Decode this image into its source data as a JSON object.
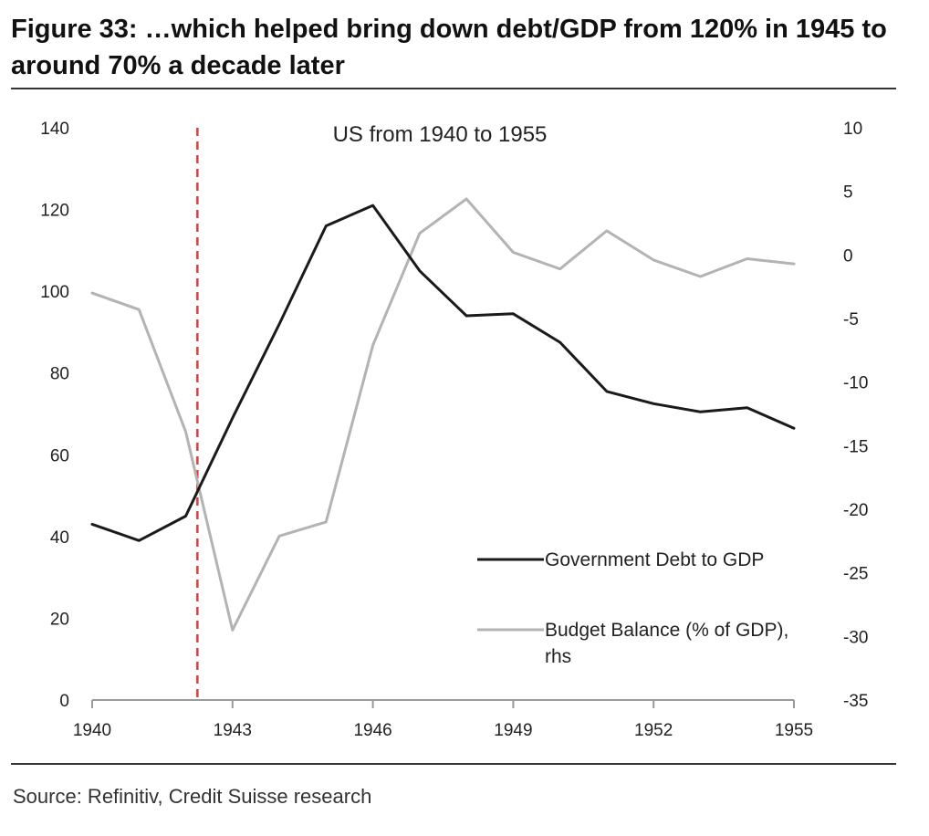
{
  "figure": {
    "title": "Figure 33: …which helped bring down debt/GDP from 120% in 1945 to around 70% a decade later",
    "source": "Source: Refinitiv, Credit Suisse research"
  },
  "chart_data": {
    "type": "line",
    "title": "US from 1940 to 1955",
    "x": [
      1940,
      1941,
      1942,
      1943,
      1944,
      1945,
      1946,
      1947,
      1948,
      1949,
      1950,
      1951,
      1952,
      1953,
      1954,
      1955
    ],
    "xticks": [
      1940,
      1943,
      1946,
      1949,
      1952,
      1955
    ],
    "xlim": [
      1940,
      1955
    ],
    "ylim_left": [
      0,
      140
    ],
    "yticks_left": [
      0,
      20,
      40,
      60,
      80,
      100,
      120,
      140
    ],
    "ylim_right": [
      -35,
      10
    ],
    "yticks_right": [
      -35,
      -30,
      -25,
      -20,
      -15,
      -10,
      -5,
      0,
      5,
      10
    ],
    "grid": false,
    "legend_position": "bottom-right",
    "vertical_marker": {
      "x": 1942.25,
      "color": "#e23b3b",
      "style": "dashed"
    },
    "series": [
      {
        "name": "Government Debt to GDP",
        "axis": "left",
        "color": "#1a1a1a",
        "values": [
          43,
          39,
          45,
          69,
          92,
          116,
          121,
          105,
          94,
          94.5,
          87.5,
          75.5,
          72.5,
          70.5,
          71.5,
          66.5
        ]
      },
      {
        "name": "Budget Balance (% of GDP), rhs",
        "axis": "right",
        "color": "#b3b3b3",
        "values": [
          -3.0,
          -4.3,
          -13.9,
          -29.5,
          -22.1,
          -21.0,
          -7.1,
          1.7,
          4.4,
          0.2,
          -1.1,
          1.9,
          -0.4,
          -1.7,
          -0.3,
          -0.7
        ]
      }
    ]
  }
}
